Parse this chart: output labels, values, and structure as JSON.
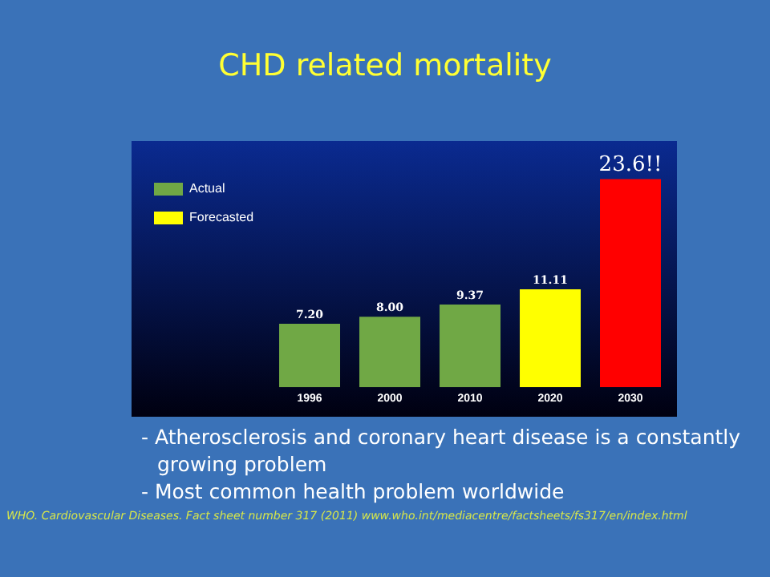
{
  "chart_data": {
    "type": "bar",
    "title": "CHD related mortality",
    "categories": [
      "1996",
      "2000",
      "2010",
      "2020",
      "2030"
    ],
    "series": [
      {
        "name": "Actual",
        "color": "#70a845",
        "values": [
          7.2,
          8.0,
          9.37,
          null,
          null
        ],
        "value_labels": [
          "7.20",
          "8.00",
          "9.37",
          null,
          null
        ]
      },
      {
        "name": "Forecasted",
        "color": "#ffff00",
        "values": [
          null,
          null,
          null,
          11.11,
          null
        ],
        "value_labels": [
          null,
          null,
          null,
          "11.11",
          null
        ]
      },
      {
        "color": "#ff0000",
        "values": [
          null,
          null,
          null,
          null,
          23.6
        ],
        "value_labels": [
          null,
          null,
          null,
          null,
          "23.6!!"
        ]
      }
    ],
    "legend": "left",
    "grid": false,
    "annotations": [
      "- Atherosclerosis and coronary heart disease is a constantly growing problem",
      "- Most common health problem worldwide",
      "WHO. Cardiovascular Diseases. Fact sheet number 317 (2011) www.who.int/mediacentre/factsheets/fs317/en/index.html"
    ]
  }
}
